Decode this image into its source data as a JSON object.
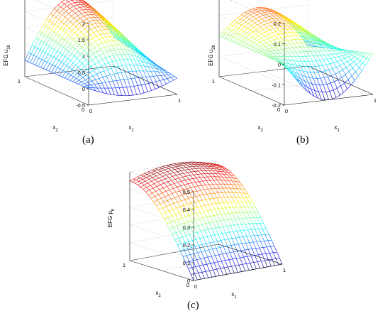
{
  "chart_data": [
    {
      "type": "surface",
      "panel_label": "(a)",
      "zlabel": "EFG u",
      "zlabel_sub": "1h",
      "xlabel": "x",
      "xlabel_sub": "1",
      "ylabel": "x",
      "ylabel_sub": "2",
      "x_ticks": [
        "0",
        "1"
      ],
      "y_ticks": [
        "0",
        "1"
      ],
      "z_ticks": [
        "-0.5",
        "0",
        "0.5",
        "1",
        "1.5",
        "2"
      ],
      "zlim": [
        -0.5,
        2
      ],
      "grid": true,
      "colormap": "jet",
      "surface_description_samples": {
        "x": [
          0,
          0.25,
          0.5,
          0.75,
          1
        ],
        "ridge_value_at_y_max": 1.75,
        "value_at_x0_y0": 0,
        "value_at_x1_y1": 0.4,
        "trough_value_near_x_half_y0": -0.4
      }
    },
    {
      "type": "surface",
      "panel_label": "(b)",
      "zlabel": "EFG u",
      "zlabel_sub": "2h",
      "xlabel": "x",
      "xlabel_sub": "1",
      "ylabel": "x",
      "ylabel_sub": "2",
      "x_ticks": [
        "0",
        "1"
      ],
      "y_ticks": [
        "0",
        "1"
      ],
      "z_ticks": [
        "-0.2",
        "-0.1",
        "0",
        "0.1",
        "0.2"
      ],
      "zlim": [
        -0.2,
        0.2
      ],
      "grid": true,
      "colormap": "jet",
      "surface_description_samples": {
        "ridge_value_at_y_max": 0.17,
        "value_at_x0_y0": 0,
        "trough_value_near_x_half_y0": -0.2
      }
    },
    {
      "type": "surface",
      "panel_label": "(c)",
      "zlabel": "EFG p",
      "zlabel_sub": "h",
      "xlabel": "x",
      "xlabel_sub": "1",
      "ylabel": "x",
      "ylabel_sub": "2",
      "x_ticks": [
        "0",
        "1"
      ],
      "y_ticks": [
        "0",
        "1"
      ],
      "z_ticks": [
        "0",
        "0.1",
        "0.2",
        "0.3",
        "0.4",
        "0.5"
      ],
      "zlim": [
        0,
        0.5
      ],
      "grid": true,
      "colormap": "jet",
      "surface_description_samples": {
        "value_at_y0": 0,
        "value_at_y1": 0.5
      }
    }
  ]
}
